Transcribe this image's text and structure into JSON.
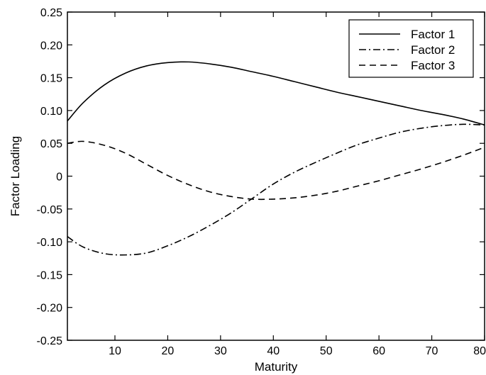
{
  "chart_data": {
    "type": "line",
    "title": "",
    "xlabel": "Maturity",
    "ylabel": "Factor Loading",
    "xlim": [
      1,
      80
    ],
    "ylim": [
      -0.25,
      0.25
    ],
    "xticks": [
      10,
      20,
      30,
      40,
      50,
      60,
      70,
      80
    ],
    "xtick_labels": [
      "10",
      "20",
      "30",
      "40",
      "50",
      "60",
      "70",
      "80"
    ],
    "yticks": [
      0.25,
      0.2,
      0.15,
      0.1,
      0.05,
      0,
      -0.05,
      -0.1,
      -0.15,
      -0.2,
      -0.25
    ],
    "ytick_labels": [
      "0.25",
      "0.20",
      "0.15",
      "0.10",
      "0.05",
      "0",
      "-0.05",
      "-0.10",
      "-0.15",
      "-0.20",
      "-0.25"
    ],
    "grid": false,
    "legend_position": "top-right",
    "x": [
      1,
      4,
      8,
      12,
      16,
      20,
      24,
      28,
      32,
      36,
      40,
      44,
      48,
      52,
      56,
      60,
      64,
      68,
      72,
      76,
      80
    ],
    "series": [
      {
        "name": "Factor 1",
        "style": "solid",
        "values": [
          0.084,
          0.112,
          0.139,
          0.157,
          0.168,
          0.173,
          0.174,
          0.171,
          0.166,
          0.159,
          0.152,
          0.144,
          0.136,
          0.128,
          0.121,
          0.114,
          0.107,
          0.1,
          0.094,
          0.087,
          0.078
        ]
      },
      {
        "name": "Factor 2",
        "style": "dashdot",
        "values": [
          -0.092,
          -0.108,
          -0.118,
          -0.12,
          -0.117,
          -0.106,
          -0.092,
          -0.075,
          -0.056,
          -0.034,
          -0.012,
          0.006,
          0.021,
          0.035,
          0.048,
          0.058,
          0.067,
          0.073,
          0.077,
          0.079,
          0.078
        ]
      },
      {
        "name": "Factor 3",
        "style": "dashed",
        "values": [
          0.05,
          0.053,
          0.047,
          0.035,
          0.018,
          0.001,
          -0.013,
          -0.024,
          -0.031,
          -0.035,
          -0.035,
          -0.033,
          -0.029,
          -0.023,
          -0.015,
          -0.007,
          0.002,
          0.011,
          0.021,
          0.032,
          0.044
        ]
      }
    ]
  }
}
